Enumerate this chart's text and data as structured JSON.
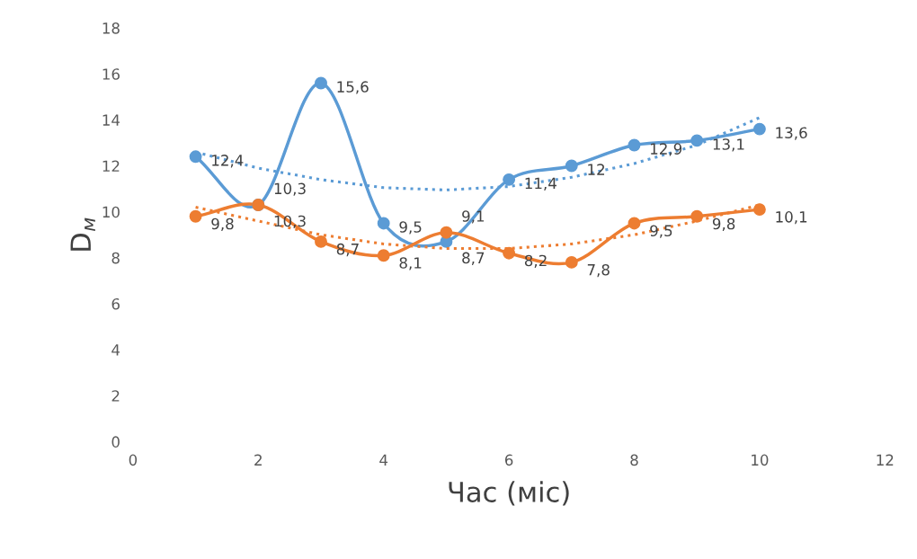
{
  "chart_data": {
    "type": "line",
    "xlabel": "Час (міс)",
    "ylabel": "D$_{м}$",
    "xlim": [
      0,
      12
    ],
    "xticks": [
      0,
      2,
      4,
      6,
      8,
      10,
      12
    ],
    "ylim": [
      0,
      18
    ],
    "yticks": [
      0,
      2,
      4,
      6,
      8,
      10,
      12,
      14,
      16,
      18
    ],
    "grid": false,
    "legend": false,
    "marker": "circle",
    "line_style": "solid",
    "series": [
      {
        "color": "#5b9bd5",
        "x": [
          1,
          2,
          3,
          4,
          5,
          6,
          7,
          8,
          9,
          10
        ],
        "values": [
          12.4,
          10.3,
          15.6,
          9.5,
          8.7,
          11.4,
          12,
          12.9,
          13.1,
          13.6
        ],
        "value_labels": [
          "12,4",
          "10,3",
          "15,6",
          "9,5",
          "8,7",
          "11,4",
          "12",
          "12,9",
          "13,1",
          "13,6"
        ]
      },
      {
        "color": "#ed7d31",
        "x": [
          1,
          2,
          3,
          4,
          5,
          6,
          7,
          8,
          9,
          10
        ],
        "values": [
          9.8,
          10.3,
          8.7,
          8.1,
          9.1,
          8.2,
          7.8,
          9.5,
          9.8,
          10.1
        ],
        "value_labels": [
          "9,8",
          "10,3",
          "8,7",
          "8,1",
          "9,1",
          "8,2",
          "7,8",
          "9,5",
          "9,8",
          "10,1"
        ]
      },
      {
        "color": "#5b9bd5",
        "marker": "none",
        "line_style": "dotted",
        "x": [
          1,
          2,
          3,
          4,
          5,
          6,
          7,
          8,
          9,
          10
        ],
        "values": [
          12.6,
          11.9,
          11.4,
          11.05,
          10.95,
          11.1,
          11.5,
          12.1,
          12.9,
          14.1
        ]
      },
      {
        "color": "#ed7d31",
        "marker": "none",
        "line_style": "dotted",
        "x": [
          1,
          2,
          3,
          4,
          5,
          6,
          7,
          8,
          9,
          10
        ],
        "values": [
          10.2,
          9.6,
          9.0,
          8.6,
          8.4,
          8.4,
          8.6,
          9.0,
          9.6,
          10.3
        ]
      }
    ]
  }
}
